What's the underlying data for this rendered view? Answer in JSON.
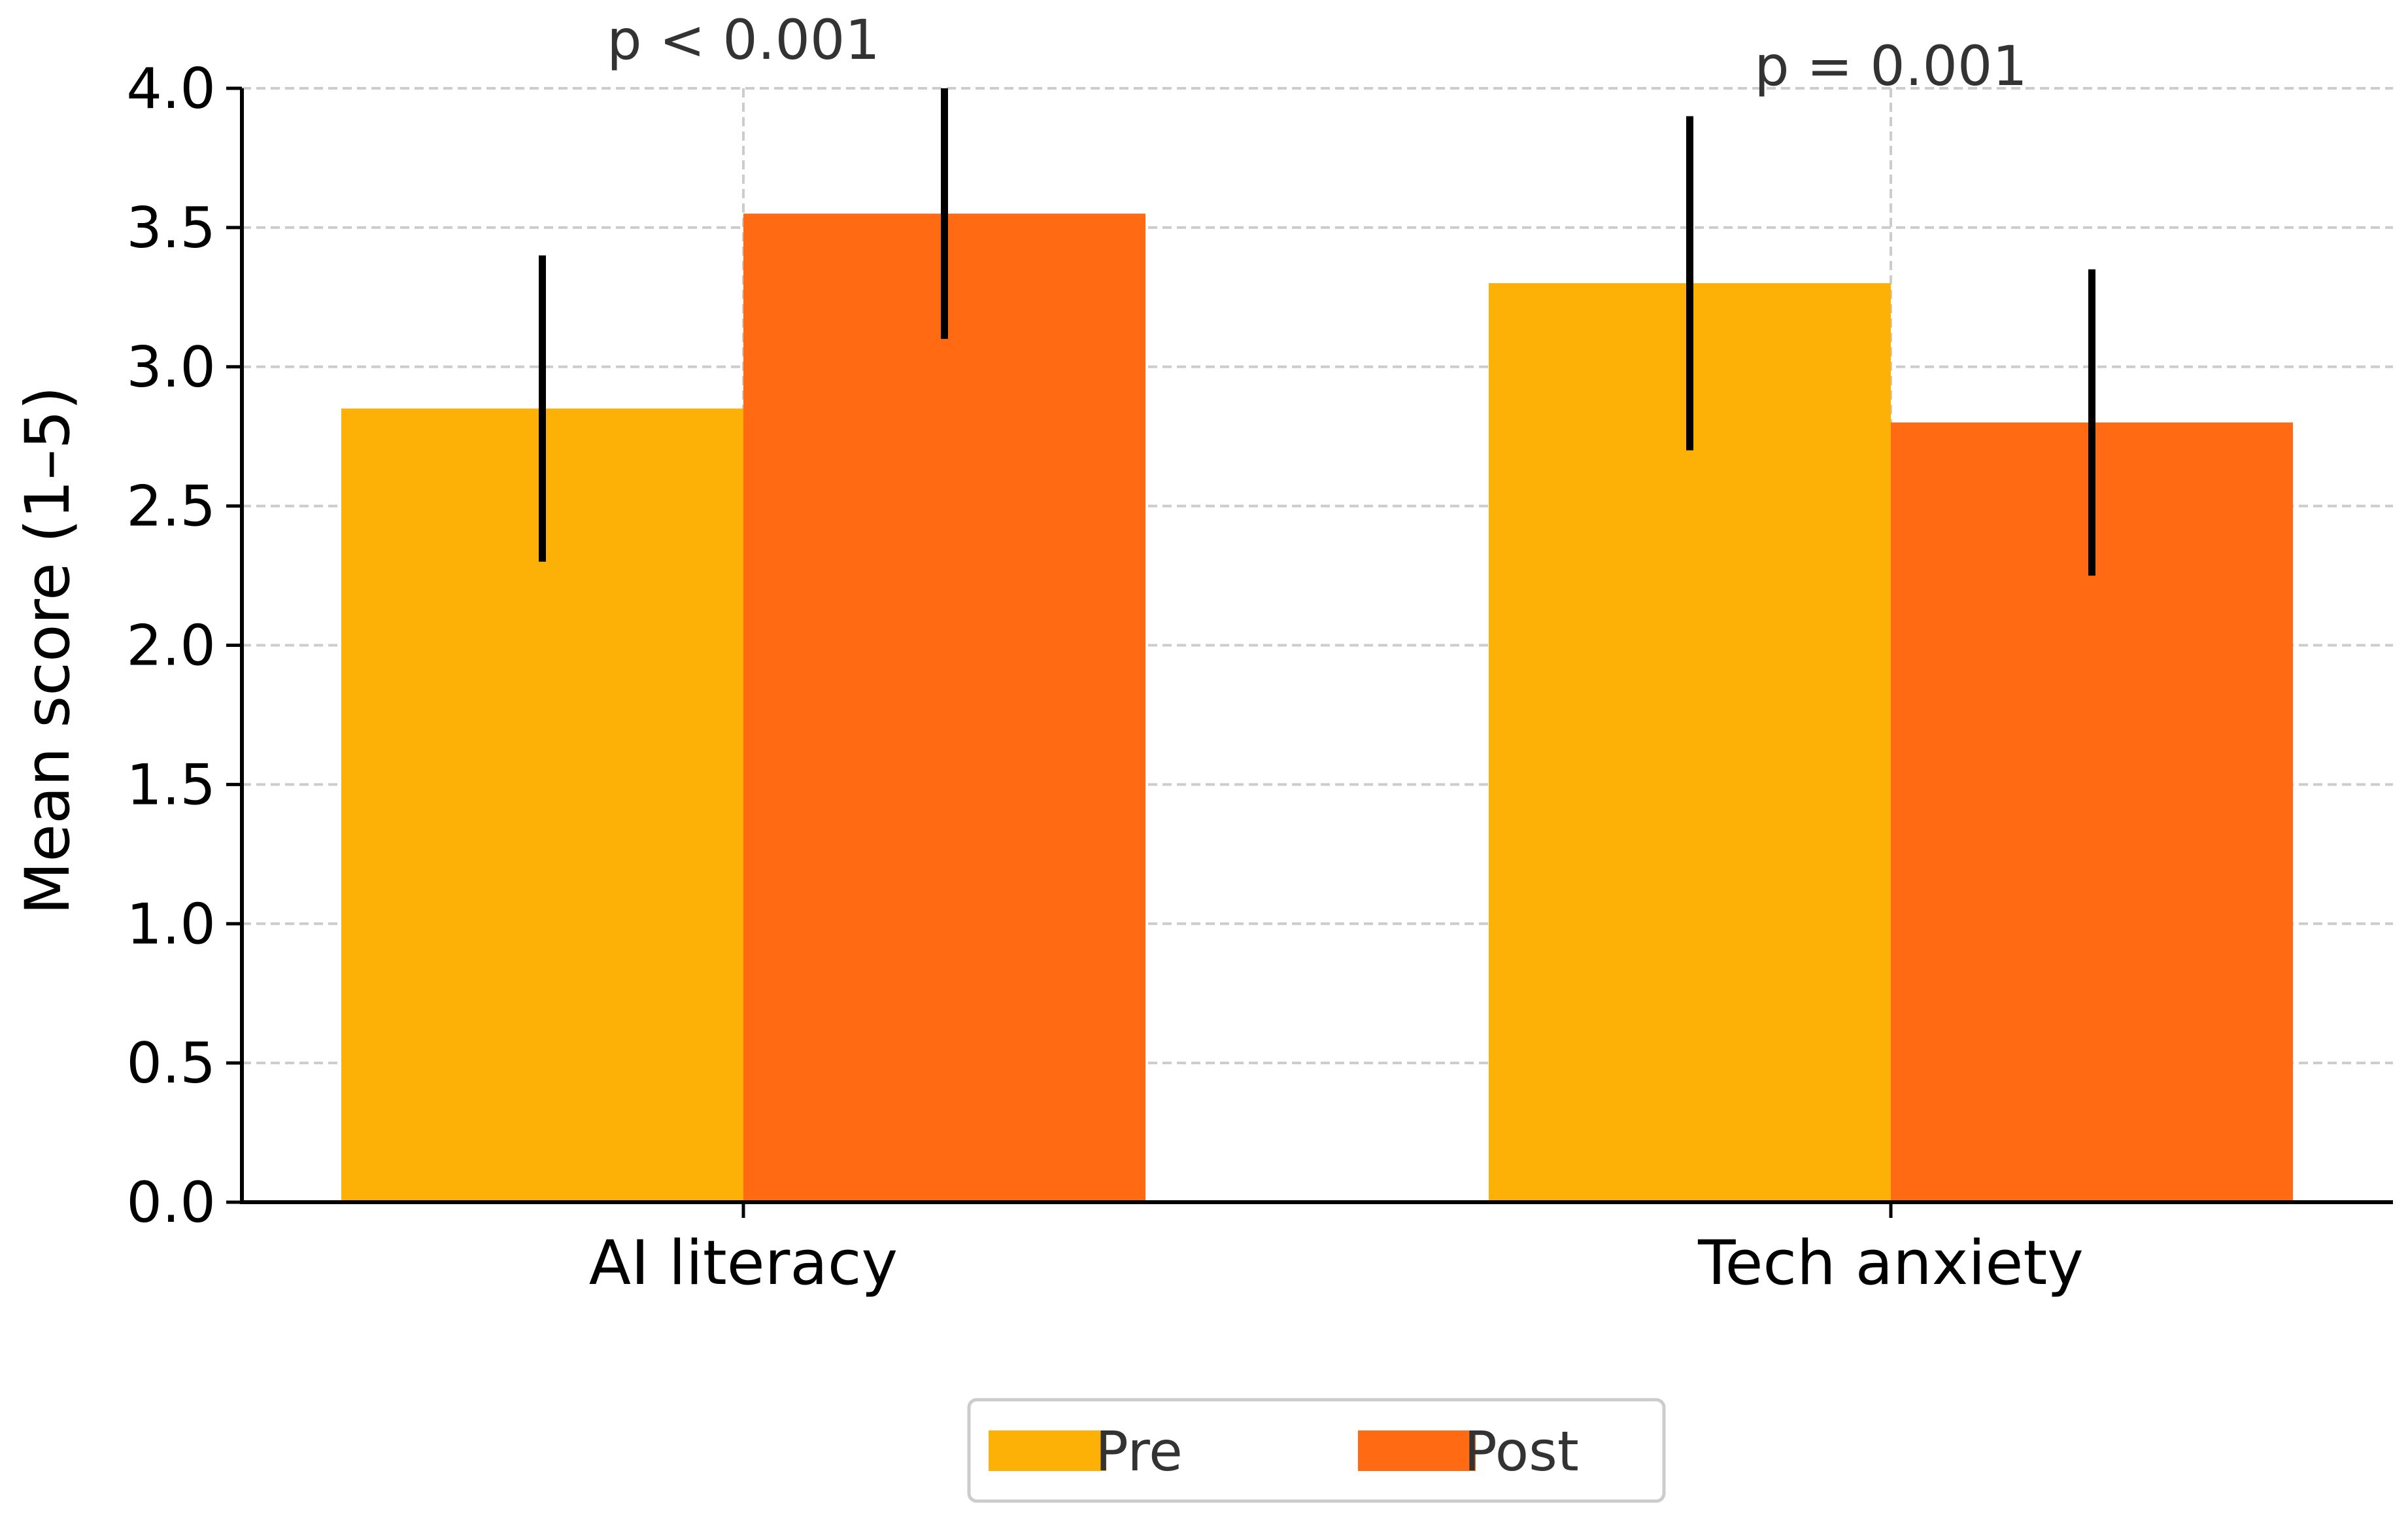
{
  "chart_data": {
    "type": "bar",
    "categories": [
      "AI literacy",
      "Tech anxiety"
    ],
    "series": [
      {
        "name": "Pre",
        "color": "#FDB005",
        "values": [
          2.85,
          3.3
        ],
        "error": [
          [
            2.3,
            3.4
          ],
          [
            2.7,
            3.9
          ]
        ]
      },
      {
        "name": "Post",
        "color": "#FF6A13",
        "values": [
          3.55,
          2.8
        ],
        "error": [
          [
            3.1,
            4.0
          ],
          [
            2.25,
            3.35
          ]
        ]
      }
    ],
    "annotations": [
      "p < 0.001",
      "p = 0.001"
    ],
    "title": "",
    "xlabel": "",
    "ylabel": "Mean score (1–5)",
    "ylim": [
      0,
      4
    ],
    "yticks": [
      "0.0",
      "0.5",
      "1.0",
      "1.5",
      "2.0",
      "2.5",
      "3.0",
      "3.5",
      "4.0"
    ],
    "grid": true,
    "legend_position": "bottom-center"
  }
}
